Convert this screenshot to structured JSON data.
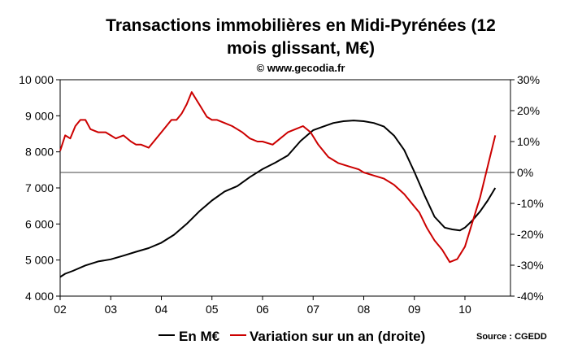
{
  "chart_data": {
    "type": "line",
    "title_line1": "Transactions immobilières en Midi-Pyrénées (12",
    "title_line2": "mois glissant, M€)",
    "subtitle": "© www.gecodia.fr",
    "source": "Source : CGEDD",
    "x_ticks": [
      "02",
      "03",
      "04",
      "05",
      "06",
      "07",
      "08",
      "09",
      "10"
    ],
    "xlim": [
      2002,
      2010.9
    ],
    "y_left": {
      "ticks": [
        "4 000",
        "5 000",
        "6 000",
        "7 000",
        "8 000",
        "9 000",
        "10 000"
      ],
      "ylim": [
        4000,
        10000
      ]
    },
    "y_right": {
      "ticks": [
        "-40%",
        "-30%",
        "-20%",
        "-10%",
        "0%",
        "10%",
        "20%",
        "30%"
      ],
      "ylim": [
        -40,
        30
      ]
    },
    "grid": false,
    "legend_position": "bottom",
    "series": [
      {
        "name": "En M€",
        "color": "#000000",
        "axis": "left",
        "points": [
          [
            2002.0,
            4530
          ],
          [
            2002.1,
            4620
          ],
          [
            2002.25,
            4700
          ],
          [
            2002.5,
            4850
          ],
          [
            2002.75,
            4960
          ],
          [
            2003.0,
            5020
          ],
          [
            2003.25,
            5120
          ],
          [
            2003.5,
            5230
          ],
          [
            2003.75,
            5330
          ],
          [
            2004.0,
            5480
          ],
          [
            2004.25,
            5700
          ],
          [
            2004.5,
            6000
          ],
          [
            2004.75,
            6350
          ],
          [
            2005.0,
            6650
          ],
          [
            2005.25,
            6900
          ],
          [
            2005.5,
            7050
          ],
          [
            2005.75,
            7300
          ],
          [
            2006.0,
            7520
          ],
          [
            2006.25,
            7700
          ],
          [
            2006.5,
            7900
          ],
          [
            2006.75,
            8300
          ],
          [
            2007.0,
            8600
          ],
          [
            2007.2,
            8700
          ],
          [
            2007.4,
            8800
          ],
          [
            2007.6,
            8850
          ],
          [
            2007.8,
            8870
          ],
          [
            2008.0,
            8850
          ],
          [
            2008.2,
            8800
          ],
          [
            2008.4,
            8700
          ],
          [
            2008.6,
            8450
          ],
          [
            2008.8,
            8050
          ],
          [
            2009.0,
            7450
          ],
          [
            2009.2,
            6800
          ],
          [
            2009.4,
            6200
          ],
          [
            2009.6,
            5900
          ],
          [
            2009.75,
            5850
          ],
          [
            2009.9,
            5820
          ],
          [
            2010.0,
            5900
          ],
          [
            2010.15,
            6100
          ],
          [
            2010.3,
            6350
          ],
          [
            2010.45,
            6650
          ],
          [
            2010.6,
            7000
          ]
        ]
      },
      {
        "name": "Variation sur un an (droite)",
        "color": "#cc0000",
        "axis": "right",
        "points": [
          [
            2002.0,
            7
          ],
          [
            2002.1,
            12
          ],
          [
            2002.2,
            11
          ],
          [
            2002.3,
            15
          ],
          [
            2002.4,
            17
          ],
          [
            2002.5,
            17
          ],
          [
            2002.6,
            14
          ],
          [
            2002.75,
            13
          ],
          [
            2002.9,
            13
          ],
          [
            2003.0,
            12
          ],
          [
            2003.1,
            11
          ],
          [
            2003.25,
            12
          ],
          [
            2003.4,
            10
          ],
          [
            2003.5,
            9
          ],
          [
            2003.6,
            9
          ],
          [
            2003.75,
            8
          ],
          [
            2004.0,
            13
          ],
          [
            2004.1,
            15
          ],
          [
            2004.2,
            17
          ],
          [
            2004.3,
            17
          ],
          [
            2004.4,
            19
          ],
          [
            2004.5,
            22
          ],
          [
            2004.6,
            26
          ],
          [
            2004.75,
            22
          ],
          [
            2004.9,
            18
          ],
          [
            2005.0,
            17
          ],
          [
            2005.1,
            17
          ],
          [
            2005.25,
            16
          ],
          [
            2005.4,
            15
          ],
          [
            2005.5,
            14
          ],
          [
            2005.6,
            13
          ],
          [
            2005.75,
            11
          ],
          [
            2005.9,
            10
          ],
          [
            2006.0,
            10
          ],
          [
            2006.2,
            9
          ],
          [
            2006.35,
            11
          ],
          [
            2006.5,
            13
          ],
          [
            2006.65,
            14
          ],
          [
            2006.8,
            15
          ],
          [
            2006.95,
            13
          ],
          [
            2007.1,
            9
          ],
          [
            2007.3,
            5
          ],
          [
            2007.5,
            3
          ],
          [
            2007.7,
            2
          ],
          [
            2007.9,
            1
          ],
          [
            2008.0,
            0
          ],
          [
            2008.2,
            -1
          ],
          [
            2008.4,
            -2
          ],
          [
            2008.6,
            -4
          ],
          [
            2008.8,
            -7
          ],
          [
            2008.95,
            -10
          ],
          [
            2009.1,
            -13
          ],
          [
            2009.25,
            -18
          ],
          [
            2009.4,
            -22
          ],
          [
            2009.55,
            -25
          ],
          [
            2009.7,
            -29
          ],
          [
            2009.85,
            -28
          ],
          [
            2010.0,
            -24
          ],
          [
            2010.15,
            -16
          ],
          [
            2010.3,
            -8
          ],
          [
            2010.45,
            2
          ],
          [
            2010.6,
            12
          ]
        ]
      }
    ],
    "reference_line": {
      "axis": "right",
      "value": 0
    }
  }
}
